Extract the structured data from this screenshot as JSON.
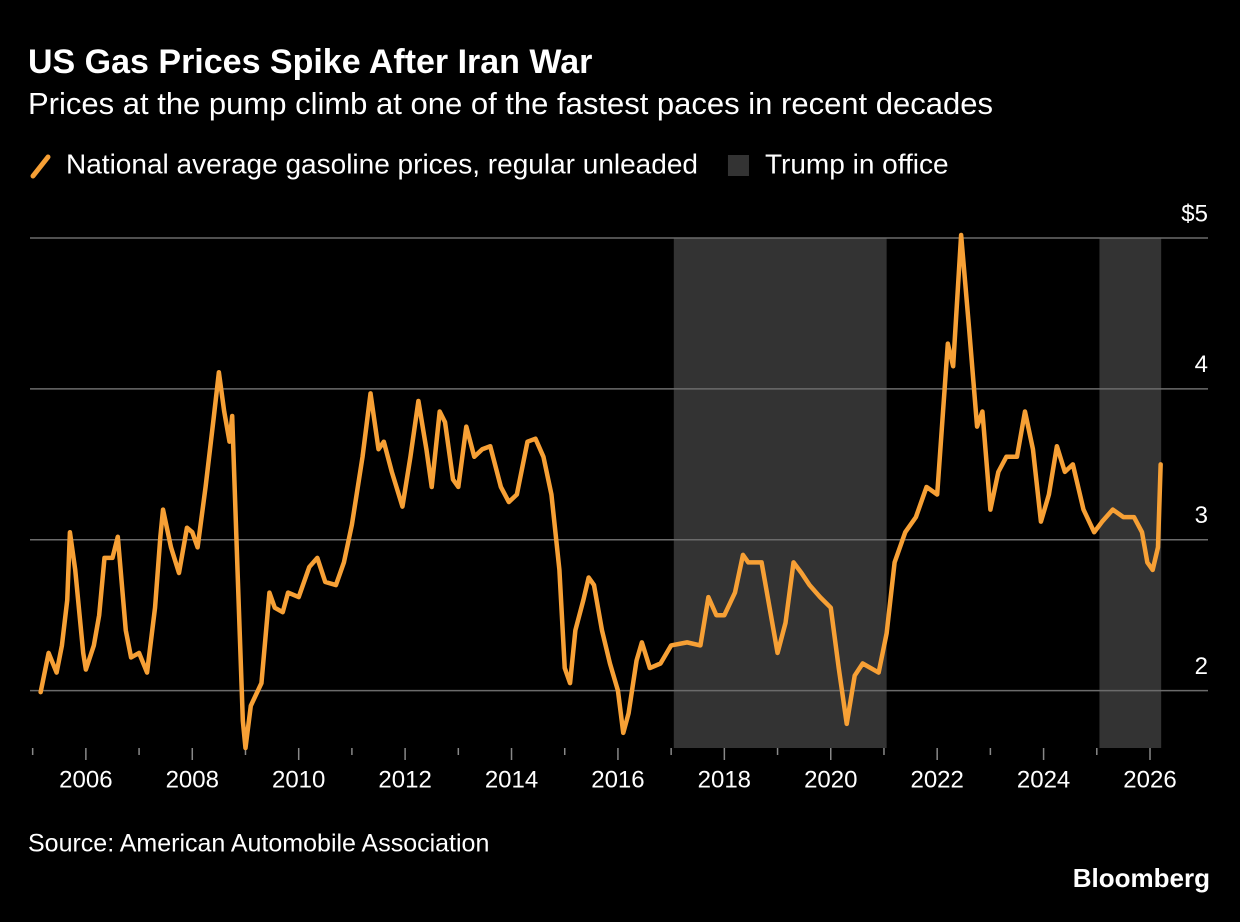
{
  "chart_data": {
    "type": "line",
    "title": "US Gas Prices Spike After Iran War",
    "subtitle": "Prices at the pump climb at one of the fastest paces in recent decades",
    "source": "Source: American Automobile Association",
    "brand": "Bloomberg",
    "xlim": [
      2004.95,
      2027.09
    ],
    "ylim": [
      1.62,
      5
    ],
    "xticks": [
      2006,
      2008,
      2010,
      2012,
      2014,
      2016,
      2018,
      2020,
      2022,
      2024,
      2026
    ],
    "xminor_ticks": [
      2005,
      2007,
      2009,
      2011,
      2013,
      2015,
      2017,
      2019,
      2021,
      2023,
      2025
    ],
    "yticks": [
      2,
      3,
      4,
      {
        "value": 5,
        "label": "$5"
      }
    ],
    "grid": true,
    "shaded": {
      "name": "Trump in office",
      "color": "#333333",
      "spans": [
        [
          2017.05,
          2021.05
        ],
        [
          2025.05,
          2026.21
        ]
      ]
    },
    "series": [
      {
        "name": "National average gasoline prices, regular unleaded",
        "color": "#f7a035",
        "x": [
          2005.15,
          2005.3,
          2005.45,
          2005.55,
          2005.65,
          2005.7,
          2005.8,
          2005.95,
          2006.0,
          2006.15,
          2006.25,
          2006.35,
          2006.5,
          2006.6,
          2006.75,
          2006.85,
          2007.0,
          2007.15,
          2007.3,
          2007.4,
          2007.45,
          2007.6,
          2007.75,
          2007.9,
          2008.0,
          2008.1,
          2008.25,
          2008.4,
          2008.5,
          2008.6,
          2008.7,
          2008.75,
          2008.85,
          2008.95,
          2009.0,
          2009.1,
          2009.3,
          2009.45,
          2009.55,
          2009.7,
          2009.8,
          2010.0,
          2010.2,
          2010.35,
          2010.5,
          2010.7,
          2010.85,
          2011.0,
          2011.2,
          2011.35,
          2011.5,
          2011.6,
          2011.75,
          2011.95,
          2012.1,
          2012.25,
          2012.4,
          2012.5,
          2012.65,
          2012.75,
          2012.9,
          2013.0,
          2013.15,
          2013.3,
          2013.45,
          2013.6,
          2013.8,
          2013.95,
          2014.1,
          2014.3,
          2014.45,
          2014.6,
          2014.75,
          2014.9,
          2015.0,
          2015.1,
          2015.2,
          2015.35,
          2015.45,
          2015.55,
          2015.7,
          2015.85,
          2016.0,
          2016.1,
          2016.2,
          2016.35,
          2016.45,
          2016.6,
          2016.8,
          2017.0,
          2017.3,
          2017.55,
          2017.7,
          2017.85,
          2018.0,
          2018.2,
          2018.35,
          2018.45,
          2018.7,
          2018.85,
          2019.0,
          2019.15,
          2019.3,
          2019.45,
          2019.6,
          2019.8,
          2020.0,
          2020.15,
          2020.3,
          2020.45,
          2020.6,
          2020.9,
          2021.05,
          2021.2,
          2021.4,
          2021.6,
          2021.8,
          2022.0,
          2022.2,
          2022.3,
          2022.45,
          2022.6,
          2022.75,
          2022.85,
          2023.0,
          2023.15,
          2023.3,
          2023.5,
          2023.65,
          2023.8,
          2023.95,
          2024.1,
          2024.25,
          2024.4,
          2024.55,
          2024.75,
          2024.95,
          2025.1,
          2025.3,
          2025.5,
          2025.7,
          2025.85,
          2025.95,
          2026.05,
          2026.15,
          2026.2
        ],
        "values": [
          1.99,
          2.25,
          2.12,
          2.3,
          2.6,
          3.05,
          2.8,
          2.25,
          2.14,
          2.3,
          2.5,
          2.88,
          2.88,
          3.02,
          2.4,
          2.22,
          2.25,
          2.12,
          2.55,
          3.02,
          3.2,
          2.95,
          2.78,
          3.08,
          3.05,
          2.95,
          3.35,
          3.8,
          4.11,
          3.85,
          3.65,
          3.82,
          2.8,
          1.8,
          1.62,
          1.9,
          2.05,
          2.65,
          2.55,
          2.52,
          2.65,
          2.62,
          2.82,
          2.88,
          2.72,
          2.7,
          2.85,
          3.1,
          3.55,
          3.97,
          3.6,
          3.65,
          3.45,
          3.22,
          3.55,
          3.92,
          3.6,
          3.35,
          3.85,
          3.78,
          3.4,
          3.35,
          3.75,
          3.55,
          3.6,
          3.62,
          3.35,
          3.25,
          3.3,
          3.65,
          3.67,
          3.55,
          3.3,
          2.8,
          2.15,
          2.05,
          2.4,
          2.6,
          2.75,
          2.7,
          2.4,
          2.18,
          2.0,
          1.72,
          1.85,
          2.2,
          2.32,
          2.15,
          2.18,
          2.3,
          2.32,
          2.3,
          2.62,
          2.5,
          2.5,
          2.65,
          2.9,
          2.85,
          2.85,
          2.55,
          2.25,
          2.45,
          2.85,
          2.78,
          2.7,
          2.62,
          2.55,
          2.15,
          1.78,
          2.1,
          2.18,
          2.12,
          2.38,
          2.85,
          3.05,
          3.15,
          3.35,
          3.3,
          4.3,
          4.15,
          5.02,
          4.4,
          3.75,
          3.85,
          3.2,
          3.45,
          3.55,
          3.55,
          3.85,
          3.6,
          3.12,
          3.3,
          3.62,
          3.45,
          3.5,
          3.2,
          3.05,
          3.12,
          3.2,
          3.15,
          3.15,
          3.05,
          2.85,
          2.8,
          2.95,
          3.5
        ]
      }
    ]
  }
}
